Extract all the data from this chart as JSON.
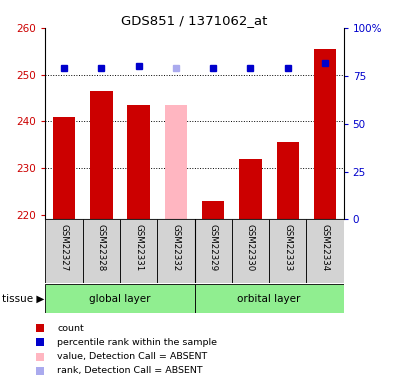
{
  "title": "GDS851 / 1371062_at",
  "samples": [
    "GSM22327",
    "GSM22328",
    "GSM22331",
    "GSM22332",
    "GSM22329",
    "GSM22330",
    "GSM22333",
    "GSM22334"
  ],
  "values": [
    241.0,
    246.5,
    243.5,
    243.5,
    223.0,
    232.0,
    235.5,
    255.5
  ],
  "ranks": [
    79,
    79,
    80,
    79,
    79,
    79,
    79,
    82
  ],
  "absent": [
    false,
    false,
    false,
    true,
    false,
    false,
    false,
    false
  ],
  "absent_rank": [
    false,
    false,
    false,
    true,
    false,
    false,
    false,
    false
  ],
  "ylim_left": [
    219,
    260
  ],
  "ylim_right": [
    0,
    100
  ],
  "yticks_left": [
    220,
    230,
    240,
    250,
    260
  ],
  "yticks_right": [
    0,
    25,
    50,
    75,
    100
  ],
  "bar_color_normal": "#cc0000",
  "bar_color_absent": "#ffb6c1",
  "rank_color_normal": "#0000cc",
  "rank_color_absent": "#aaaaee",
  "legend_items": [
    {
      "color": "#cc0000",
      "label": "count"
    },
    {
      "color": "#0000cc",
      "label": "percentile rank within the sample"
    },
    {
      "color": "#ffb6c1",
      "label": "value, Detection Call = ABSENT"
    },
    {
      "color": "#aaaaee",
      "label": "rank, Detection Call = ABSENT"
    }
  ]
}
